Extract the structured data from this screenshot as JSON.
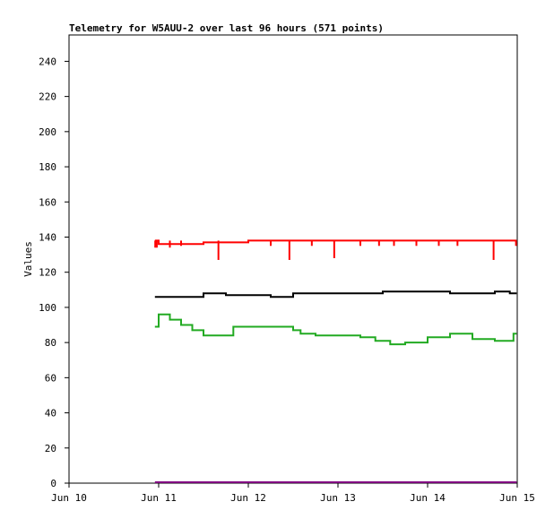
{
  "chart_data": {
    "type": "line",
    "title": "Telemetry for W5AUU-2 over last 96 hours (571 points)",
    "xlabel": "",
    "ylabel": "Values",
    "x_ticks": [
      "Jun 10",
      "Jun 11",
      "Jun 12",
      "Jun 13",
      "Jun 14",
      "Jun 15"
    ],
    "xlim": [
      "Jun 10",
      "Jun 15"
    ],
    "ylim": [
      0,
      255
    ],
    "y_ticks": [
      0,
      20,
      40,
      60,
      80,
      100,
      120,
      140,
      160,
      180,
      200,
      220,
      240
    ],
    "grid": false,
    "legend": "none",
    "series": [
      {
        "color": "#ff0000",
        "x": [
          "Jun 10 23:00",
          "Jun 11 00:00",
          "Jun 11 12:00",
          "Jun 12 00:00",
          "Jun 12 12:00",
          "Jun 13 00:00",
          "Jun 13 12:00",
          "Jun 14 00:00",
          "Jun 14 12:00",
          "Jun 14 23:50"
        ],
        "y": [
          138,
          136,
          137,
          138,
          138,
          138,
          138,
          138,
          138,
          138
        ],
        "dips": [
          {
            "x": "Jun 10 23:05",
            "y": 134
          },
          {
            "x": "Jun 10 23:30",
            "y": 134
          },
          {
            "x": "Jun 11 03:00",
            "y": 134
          },
          {
            "x": "Jun 11 06:00",
            "y": 135
          },
          {
            "x": "Jun 11 16:00",
            "y": 127
          },
          {
            "x": "Jun 12 06:00",
            "y": 135
          },
          {
            "x": "Jun 12 11:00",
            "y": 127
          },
          {
            "x": "Jun 12 17:00",
            "y": 135
          },
          {
            "x": "Jun 12 23:00",
            "y": 128
          },
          {
            "x": "Jun 13 06:00",
            "y": 135
          },
          {
            "x": "Jun 13 11:00",
            "y": 135
          },
          {
            "x": "Jun 13 15:00",
            "y": 135
          },
          {
            "x": "Jun 13 21:00",
            "y": 135
          },
          {
            "x": "Jun 14 03:00",
            "y": 135
          },
          {
            "x": "Jun 14 08:00",
            "y": 135
          },
          {
            "x": "Jun 14 17:40",
            "y": 127
          },
          {
            "x": "Jun 14 23:40",
            "y": 135
          }
        ]
      },
      {
        "color": "#000000",
        "x": [
          "Jun 10 23:00",
          "Jun 11 06:00",
          "Jun 11 12:00",
          "Jun 11 18:00",
          "Jun 12 06:00",
          "Jun 12 12:00",
          "Jun 12 18:00",
          "Jun 13 06:00",
          "Jun 13 12:00",
          "Jun 13 18:00",
          "Jun 14 06:00",
          "Jun 14 12:00",
          "Jun 14 18:00",
          "Jun 14 22:00",
          "Jun 14 23:50"
        ],
        "y": [
          106,
          106,
          108,
          107,
          106,
          108,
          108,
          108,
          109,
          109,
          108,
          108,
          109,
          108,
          108
        ]
      },
      {
        "color": "#22aa22",
        "x": [
          "Jun 10 23:00",
          "Jun 11 00:00",
          "Jun 11 03:00",
          "Jun 11 06:00",
          "Jun 11 09:00",
          "Jun 11 12:00",
          "Jun 11 16:00",
          "Jun 11 20:00",
          "Jun 12 00:00",
          "Jun 12 06:00",
          "Jun 12 12:00",
          "Jun 12 14:00",
          "Jun 12 18:00",
          "Jun 13 00:00",
          "Jun 13 06:00",
          "Jun 13 10:00",
          "Jun 13 14:00",
          "Jun 13 18:00",
          "Jun 14 00:00",
          "Jun 14 06:00",
          "Jun 14 12:00",
          "Jun 14 18:00",
          "Jun 14 23:00",
          "Jun 14 23:50"
        ],
        "y": [
          89,
          96,
          93,
          90,
          87,
          84,
          84,
          89,
          89,
          89,
          87,
          85,
          84,
          84,
          83,
          81,
          79,
          80,
          83,
          85,
          82,
          81,
          85,
          85
        ]
      },
      {
        "color": "#800080",
        "x": [
          "Jun 10 23:00",
          "Jun 14 23:50"
        ],
        "y": [
          0.5,
          0.5
        ]
      }
    ]
  }
}
